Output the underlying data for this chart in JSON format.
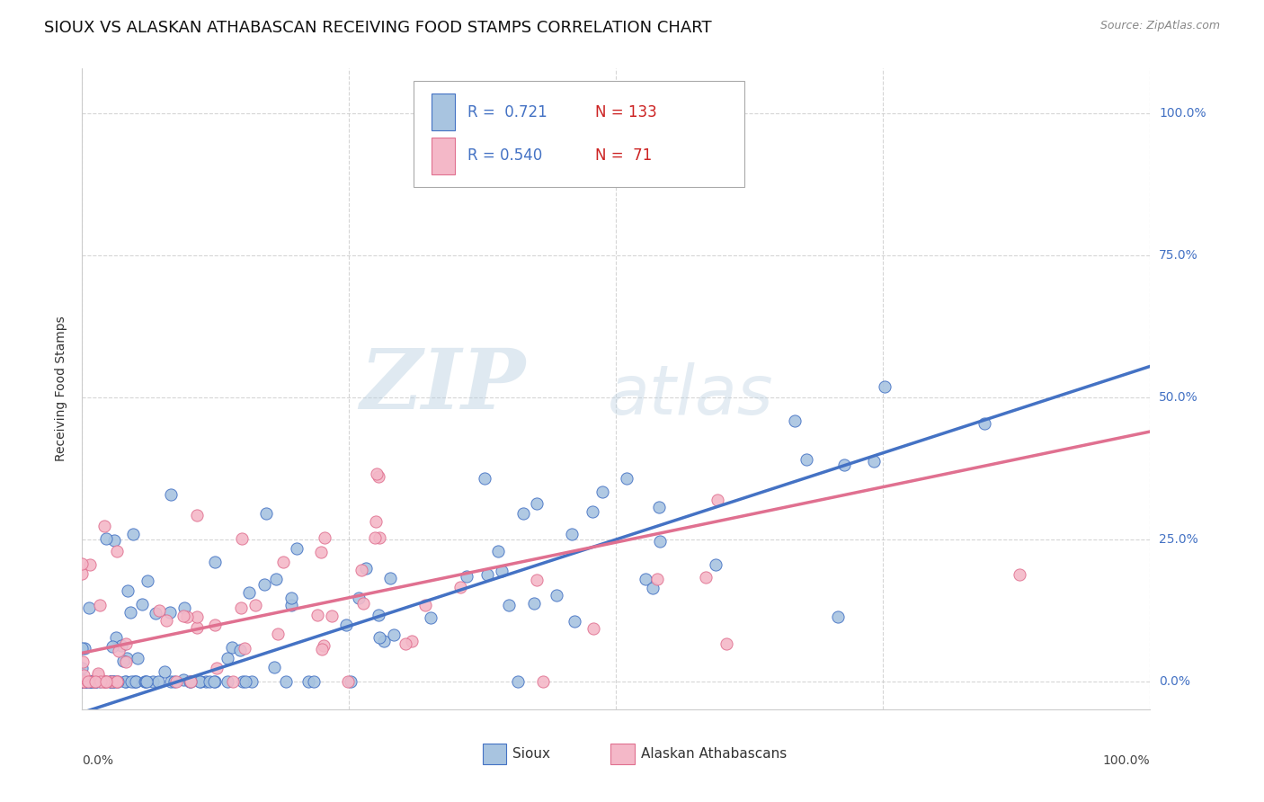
{
  "title": "SIOUX VS ALASKAN ATHABASCAN RECEIVING FOOD STAMPS CORRELATION CHART",
  "source": "Source: ZipAtlas.com",
  "ylabel": "Receiving Food Stamps",
  "ytick_labels": [
    "0.0%",
    "25.0%",
    "50.0%",
    "75.0%",
    "100.0%"
  ],
  "ytick_values": [
    0.0,
    0.25,
    0.5,
    0.75,
    1.0
  ],
  "sioux_color": "#a8c4e0",
  "sioux_line_color": "#4472c4",
  "athabascan_color": "#f4b8c8",
  "athabascan_line_color": "#e07090",
  "watermark_zip": "ZIP",
  "watermark_atlas": "atlas",
  "sioux_R": 0.721,
  "athabascan_R": 0.54,
  "sioux_N": 133,
  "athabascan_N": 71,
  "background_color": "#ffffff",
  "grid_color": "#cccccc",
  "title_fontsize": 13,
  "legend_fontsize": 12,
  "ytick_color": "#4472c4",
  "sioux_line_b": -0.055,
  "sioux_line_m": 0.61,
  "atha_line_b": 0.05,
  "atha_line_m": 0.39
}
